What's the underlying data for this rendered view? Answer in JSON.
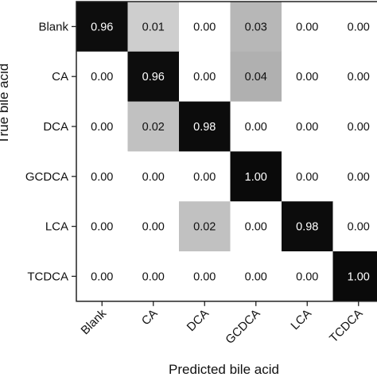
{
  "chart_data": {
    "type": "heatmap",
    "title": "",
    "xlabel": "Predicted bile acid",
    "ylabel": "True bile acid",
    "x_categories": [
      "Blank",
      "CA",
      "DCA",
      "GCDCA",
      "LCA",
      "TCDCA"
    ],
    "y_categories": [
      "Blank",
      "CA",
      "DCA",
      "GCDCA",
      "LCA",
      "TCDCA"
    ],
    "values": [
      [
        0.96,
        0.01,
        0.0,
        0.03,
        0.0,
        0.0
      ],
      [
        0.0,
        0.96,
        0.0,
        0.04,
        0.0,
        0.0
      ],
      [
        0.0,
        0.02,
        0.98,
        0.0,
        0.0,
        0.0
      ],
      [
        0.0,
        0.0,
        0.0,
        1.0,
        0.0,
        0.0
      ],
      [
        0.0,
        0.0,
        0.02,
        0.0,
        0.98,
        0.0
      ],
      [
        0.0,
        0.0,
        0.0,
        0.0,
        0.0,
        1.0
      ]
    ],
    "value_labels": [
      [
        "0.96",
        "0.01",
        "0.00",
        "0.03",
        "0.00",
        "0.00"
      ],
      [
        "0.00",
        "0.96",
        "0.00",
        "0.04",
        "0.00",
        "0.00"
      ],
      [
        "0.00",
        "0.02",
        "0.98",
        "0.00",
        "0.00",
        "0.00"
      ],
      [
        "0.00",
        "0.00",
        "0.00",
        "1.00",
        "0.00",
        "0.00"
      ],
      [
        "0.00",
        "0.00",
        "0.02",
        "0.00",
        "0.98",
        "0.00"
      ],
      [
        "0.00",
        "0.00",
        "0.00",
        "0.00",
        "0.00",
        "1.00"
      ]
    ],
    "color_scale": {
      "low": "#ffffff",
      "high": "#0a0a0a"
    },
    "grid": false
  }
}
